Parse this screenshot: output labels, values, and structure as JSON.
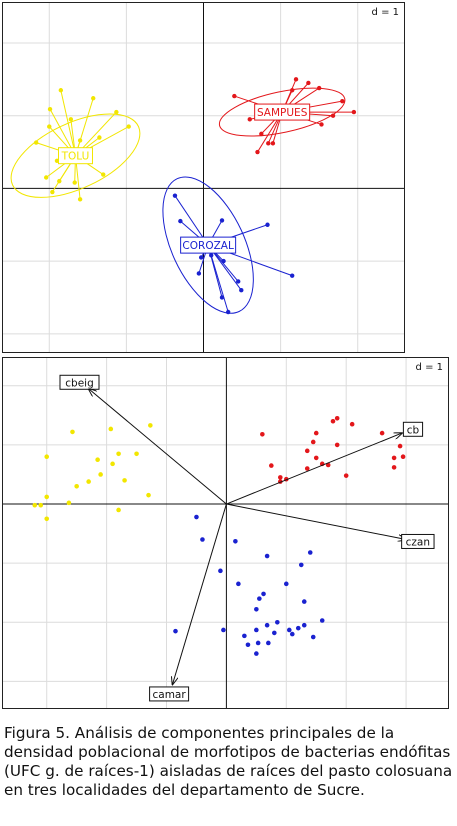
{
  "chart_data": [
    {
      "type": "scatter",
      "subtype": "pca-class-ellipses",
      "scale_label": "d = 1",
      "grid": true,
      "xlim": [
        -2.6,
        2.6
      ],
      "ylim": [
        -2.25,
        2.55
      ],
      "groups": [
        {
          "name": "TOLU",
          "color": "#f2e600",
          "center": [
            -1.66,
            0.45
          ],
          "ellipse": {
            "rx": 0.9,
            "ry": 0.45,
            "angle": -25
          },
          "points": [
            [
              -1.85,
              1.35
            ],
            [
              -1.43,
              1.24
            ],
            [
              -1.13,
              1.05
            ],
            [
              -1.99,
              1.09
            ],
            [
              -1.72,
              0.95
            ],
            [
              -0.97,
              0.85
            ],
            [
              -2.0,
              0.85
            ],
            [
              -2.17,
              0.63
            ],
            [
              -1.6,
              0.66
            ],
            [
              -1.35,
              0.7
            ],
            [
              -1.9,
              0.38
            ],
            [
              -2.04,
              0.15
            ],
            [
              -1.87,
              0.1
            ],
            [
              -1.67,
              0.08
            ],
            [
              -1.3,
              0.19
            ],
            [
              -1.6,
              -0.15
            ],
            [
              -1.96,
              -0.05
            ]
          ]
        },
        {
          "name": "SAMPUES",
          "color": "#e3171b",
          "center": [
            1.02,
            1.05
          ],
          "ellipse": {
            "rx": 0.83,
            "ry": 0.28,
            "angle": -12
          },
          "points": [
            [
              1.15,
              1.35
            ],
            [
              1.2,
              1.5
            ],
            [
              1.36,
              1.45
            ],
            [
              1.5,
              1.38
            ],
            [
              0.4,
              1.27
            ],
            [
              1.8,
              1.2
            ],
            [
              1.95,
              1.05
            ],
            [
              1.68,
              1.0
            ],
            [
              0.6,
              0.95
            ],
            [
              1.53,
              0.88
            ],
            [
              0.75,
              0.75
            ],
            [
              0.84,
              0.62
            ],
            [
              0.7,
              0.5
            ],
            [
              0.9,
              0.62
            ]
          ]
        },
        {
          "name": "COROZAL",
          "color": "#1a22d0",
          "center": [
            0.06,
            -0.78
          ],
          "ellipse": {
            "rx": 0.95,
            "ry": 0.5,
            "angle": 65
          },
          "points": [
            [
              -0.37,
              -0.1
            ],
            [
              -0.3,
              -0.45
            ],
            [
              0.24,
              -0.44
            ],
            [
              0.83,
              -0.5
            ],
            [
              -0.05,
              -0.75
            ],
            [
              -0.03,
              -0.95
            ],
            [
              0.1,
              -0.92
            ],
            [
              0.26,
              -1.0
            ],
            [
              -0.06,
              -1.17
            ],
            [
              0.45,
              -1.28
            ],
            [
              0.49,
              -1.4
            ],
            [
              0.24,
              -1.5
            ],
            [
              0.32,
              -1.7
            ],
            [
              1.15,
              -1.2
            ]
          ]
        }
      ]
    },
    {
      "type": "scatter",
      "subtype": "pca-biplot",
      "scale_label": "d = 1",
      "grid": true,
      "xlim": [
        -3.73,
        3.7
      ],
      "ylim": [
        -3.45,
        2.47
      ],
      "vectors": [
        {
          "label": "cbeig",
          "x": -2.3,
          "y": 1.95
        },
        {
          "label": "cb",
          "x": 2.93,
          "y": 1.2
        },
        {
          "label": "czan",
          "x": 3.0,
          "y": -0.6
        },
        {
          "label": "camar",
          "x": -0.9,
          "y": -3.05
        }
      ],
      "groups": [
        {
          "color": "#f2e600",
          "points": [
            [
              -2.57,
              1.22
            ],
            [
              -1.93,
              1.27
            ],
            [
              -1.27,
              1.33
            ],
            [
              -1.8,
              0.85
            ],
            [
              -1.9,
              0.68
            ],
            [
              -2.15,
              0.75
            ],
            [
              -1.5,
              0.85
            ],
            [
              -3.0,
              0.8
            ],
            [
              -2.5,
              0.3
            ],
            [
              -2.1,
              0.5
            ],
            [
              -2.3,
              0.38
            ],
            [
              -1.7,
              0.4
            ],
            [
              -1.3,
              0.15
            ],
            [
              -3.0,
              0.12
            ],
            [
              -2.63,
              0.02
            ],
            [
              -3.1,
              -0.02
            ],
            [
              -3.2,
              -0.02
            ],
            [
              -1.8,
              -0.1
            ],
            [
              -3.0,
              -0.25
            ]
          ]
        },
        {
          "color": "#e3171b",
          "points": [
            [
              1.78,
              1.4
            ],
            [
              1.85,
              1.45
            ],
            [
              2.1,
              1.35
            ],
            [
              1.5,
              1.2
            ],
            [
              0.6,
              1.18
            ],
            [
              1.45,
              1.05
            ],
            [
              2.6,
              1.2
            ],
            [
              1.85,
              1.0
            ],
            [
              1.35,
              0.9
            ],
            [
              2.9,
              0.98
            ],
            [
              1.5,
              0.78
            ],
            [
              1.6,
              0.68
            ],
            [
              1.7,
              0.66
            ],
            [
              2.95,
              0.8
            ],
            [
              0.75,
              0.65
            ],
            [
              2.8,
              0.78
            ],
            [
              2.8,
              0.62
            ],
            [
              1.35,
              0.6
            ],
            [
              2.0,
              0.48
            ],
            [
              1.0,
              0.42
            ],
            [
              0.9,
              0.38
            ],
            [
              0.9,
              0.45
            ]
          ]
        },
        {
          "color": "#1a22d0",
          "points": [
            [
              -0.5,
              -0.22
            ],
            [
              -0.4,
              -0.6
            ],
            [
              0.15,
              -0.63
            ],
            [
              1.4,
              -0.82
            ],
            [
              0.68,
              -0.88
            ],
            [
              1.25,
              -1.03
            ],
            [
              -0.1,
              -1.13
            ],
            [
              0.2,
              -1.35
            ],
            [
              1.0,
              -1.35
            ],
            [
              0.62,
              -1.52
            ],
            [
              0.55,
              -1.6
            ],
            [
              1.3,
              -1.65
            ],
            [
              0.5,
              -1.78
            ],
            [
              1.6,
              -1.97
            ],
            [
              0.85,
              -2.0
            ],
            [
              0.68,
              -2.05
            ],
            [
              0.5,
              -2.13
            ],
            [
              1.05,
              -2.13
            ],
            [
              -0.05,
              -2.13
            ],
            [
              1.1,
              -2.2
            ],
            [
              1.45,
              -2.25
            ],
            [
              0.8,
              -2.18
            ],
            [
              0.3,
              -2.23
            ],
            [
              0.53,
              -2.35
            ],
            [
              0.36,
              -2.38
            ],
            [
              0.5,
              -2.53
            ],
            [
              -0.85,
              -2.15
            ],
            [
              1.3,
              -2.05
            ],
            [
              1.2,
              -2.1
            ],
            [
              0.7,
              -2.35
            ]
          ]
        }
      ]
    }
  ],
  "caption": "Figura 5. Análisis de componentes principales de la densidad poblacional de morfotipos de bacterias endófitas (UFC  g. de raíces-1) aisladas de raíces del pasto colosuana en tres localidades del departamento de Sucre."
}
